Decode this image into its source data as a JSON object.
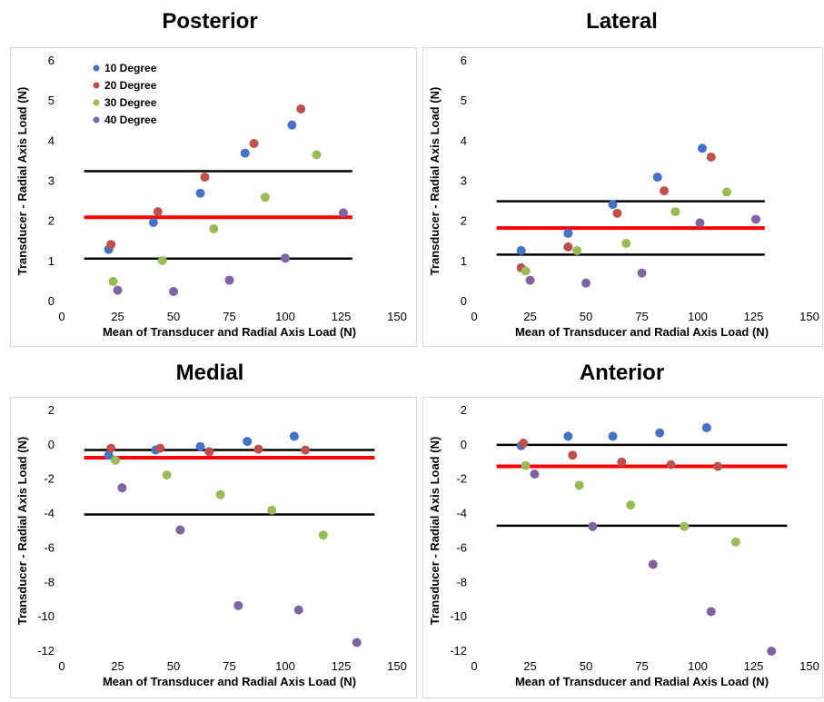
{
  "colors": {
    "10 Degree": "#4472c4",
    "20 Degree": "#c0504d",
    "30 Degree": "#9bbb59",
    "40 Degree": "#8064a2",
    "mean_line": "#ff0000",
    "limit_line": "#000000"
  },
  "chart_data": [
    {
      "type": "scatter",
      "title": "Posterior",
      "xlabel": "Mean of Transducer and Radial Axis Load (N)",
      "ylabel": "Transducer - Radial Axis Load (N)",
      "xlim": [
        0,
        150
      ],
      "ylim": [
        0,
        6
      ],
      "xticks": [
        0,
        25,
        50,
        75,
        100,
        125,
        150
      ],
      "yticks": [
        0,
        1,
        2,
        3,
        4,
        5,
        6
      ],
      "legend": "top-left",
      "series": [
        {
          "name": "10 Degree",
          "points": [
            [
              21,
              1.3
            ],
            [
              41,
              1.97
            ],
            [
              62,
              2.7
            ],
            [
              82,
              3.7
            ],
            [
              103,
              4.4
            ]
          ]
        },
        {
          "name": "20 Degree",
          "points": [
            [
              22,
              1.42
            ],
            [
              43,
              2.24
            ],
            [
              64,
              3.1
            ],
            [
              86,
              3.94
            ],
            [
              107,
              4.8
            ]
          ]
        },
        {
          "name": "30 Degree",
          "points": [
            [
              23,
              0.5
            ],
            [
              45,
              1.02
            ],
            [
              68,
              1.81
            ],
            [
              91,
              2.6
            ],
            [
              114,
              3.66
            ]
          ]
        },
        {
          "name": "40 Degree",
          "points": [
            [
              25,
              0.28
            ],
            [
              50,
              0.25
            ],
            [
              75,
              0.53
            ],
            [
              100,
              1.08
            ],
            [
              126,
              2.21
            ]
          ]
        }
      ],
      "mean_line": {
        "y": 2.1,
        "x_range": [
          10,
          130
        ]
      },
      "limit_lines": [
        {
          "y": 3.25,
          "x_range": [
            10,
            130
          ]
        },
        {
          "y": 1.07,
          "x_range": [
            10,
            130
          ]
        }
      ]
    },
    {
      "type": "scatter",
      "title": "Lateral",
      "xlabel": "Mean of Transducer and Radial Axis Load (N)",
      "ylabel": "Transducer - Radial Axis Load (N)",
      "xlim": [
        0,
        150
      ],
      "ylim": [
        0,
        6
      ],
      "xticks": [
        0,
        25,
        50,
        75,
        100,
        125,
        150
      ],
      "yticks": [
        0,
        1,
        2,
        3,
        4,
        5,
        6
      ],
      "series": [
        {
          "name": "10 Degree",
          "points": [
            [
              21,
              1.27
            ],
            [
              42,
              1.7
            ],
            [
              62,
              2.42
            ],
            [
              82,
              3.1
            ],
            [
              102,
              3.82
            ]
          ]
        },
        {
          "name": "20 Degree",
          "points": [
            [
              21,
              0.84
            ],
            [
              42,
              1.36
            ],
            [
              64,
              2.2
            ],
            [
              85,
              2.76
            ],
            [
              106,
              3.6
            ]
          ]
        },
        {
          "name": "30 Degree",
          "points": [
            [
              23,
              0.76
            ],
            [
              46,
              1.27
            ],
            [
              68,
              1.45
            ],
            [
              90,
              2.24
            ],
            [
              113,
              2.73
            ]
          ]
        },
        {
          "name": "40 Degree",
          "points": [
            [
              25,
              0.53
            ],
            [
              50,
              0.46
            ],
            [
              75,
              0.71
            ],
            [
              101,
              1.96
            ],
            [
              126,
              2.05
            ]
          ]
        }
      ],
      "mean_line": {
        "y": 1.83,
        "x_range": [
          10,
          130
        ]
      },
      "limit_lines": [
        {
          "y": 2.5,
          "x_range": [
            10,
            130
          ]
        },
        {
          "y": 1.17,
          "x_range": [
            10,
            130
          ]
        }
      ]
    },
    {
      "type": "scatter",
      "title": "Medial",
      "xlabel": "Mean of Transducer and Radial Axis Load (N)",
      "ylabel": "Transducer - Radial Axis Load (N)",
      "xlim": [
        0,
        150
      ],
      "ylim": [
        -12,
        2
      ],
      "xticks": [
        0,
        25,
        50,
        75,
        100,
        125,
        150
      ],
      "yticks": [
        -12,
        -10,
        -8,
        -6,
        -4,
        -2,
        0,
        2
      ],
      "series": [
        {
          "name": "10 Degree",
          "points": [
            [
              21,
              -0.6
            ],
            [
              42,
              -0.3
            ],
            [
              62,
              -0.1
            ],
            [
              83,
              0.2
            ],
            [
              104,
              0.5
            ]
          ]
        },
        {
          "name": "20 Degree",
          "points": [
            [
              22,
              -0.2
            ],
            [
              44,
              -0.2
            ],
            [
              66,
              -0.4
            ],
            [
              88,
              -0.25
            ],
            [
              109,
              -0.3
            ]
          ]
        },
        {
          "name": "30 Degree",
          "points": [
            [
              24,
              -0.9
            ],
            [
              47,
              -1.75
            ],
            [
              71,
              -2.9
            ],
            [
              94,
              -3.8
            ],
            [
              117,
              -5.25
            ]
          ]
        },
        {
          "name": "40 Degree",
          "points": [
            [
              27,
              -2.5
            ],
            [
              53,
              -4.95
            ],
            [
              79,
              -9.35
            ],
            [
              106,
              -9.6
            ],
            [
              132,
              -11.5
            ]
          ]
        }
      ],
      "mean_line": {
        "y": -0.75,
        "x_range": [
          10,
          140
        ]
      },
      "limit_lines": [
        {
          "y": -0.3,
          "x_range": [
            10,
            140
          ]
        },
        {
          "y": -4.05,
          "x_range": [
            10,
            140
          ]
        }
      ]
    },
    {
      "type": "scatter",
      "title": "Anterior",
      "xlabel": "Mean of Transducer and Radial Axis Load (N)",
      "ylabel": "Transducer - Radial Axis Load (N)",
      "xlim": [
        0,
        150
      ],
      "ylim": [
        -12,
        2
      ],
      "xticks": [
        0,
        25,
        50,
        75,
        100,
        125,
        150
      ],
      "yticks": [
        -12,
        -10,
        -8,
        -6,
        -4,
        -2,
        0,
        2
      ],
      "series": [
        {
          "name": "10 Degree",
          "points": [
            [
              21,
              -0.05
            ],
            [
              42,
              0.5
            ],
            [
              62,
              0.5
            ],
            [
              83,
              0.7
            ],
            [
              104,
              1.0
            ]
          ]
        },
        {
          "name": "20 Degree",
          "points": [
            [
              22,
              0.1
            ],
            [
              44,
              -0.6
            ],
            [
              66,
              -1.0
            ],
            [
              88,
              -1.15
            ],
            [
              109,
              -1.25
            ]
          ]
        },
        {
          "name": "30 Degree",
          "points": [
            [
              23,
              -1.2
            ],
            [
              47,
              -2.35
            ],
            [
              70,
              -3.5
            ],
            [
              94,
              -4.75
            ],
            [
              117,
              -5.65
            ]
          ]
        },
        {
          "name": "40 Degree",
          "points": [
            [
              27,
              -1.7
            ],
            [
              53,
              -4.75
            ],
            [
              80,
              -6.95
            ],
            [
              106,
              -9.7
            ],
            [
              133,
              -12.0
            ]
          ]
        }
      ],
      "mean_line": {
        "y": -1.25,
        "x_range": [
          10,
          140
        ]
      },
      "limit_lines": [
        {
          "y": 0.0,
          "x_range": [
            10,
            140
          ]
        },
        {
          "y": -4.7,
          "x_range": [
            10,
            140
          ]
        }
      ]
    }
  ]
}
